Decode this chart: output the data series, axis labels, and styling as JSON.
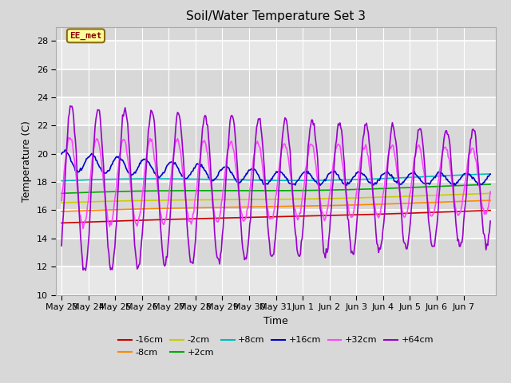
{
  "title": "Soil/Water Temperature Set 3",
  "xlabel": "Time",
  "ylabel": "Temperature (C)",
  "ylim": [
    10,
    29
  ],
  "yticks": [
    10,
    12,
    14,
    16,
    18,
    20,
    22,
    24,
    26,
    28
  ],
  "figsize": [
    6.4,
    4.8
  ],
  "dpi": 100,
  "bg_color": "#d8d8d8",
  "annotation_text": "EE_met",
  "annotation_color": "#8B0000",
  "annotation_bg": "#ffff99",
  "annotation_border": "#8B6914",
  "x_labels": [
    "May 23",
    "May 24",
    "May 25",
    "May 26",
    "May 27",
    "May 28",
    "May 29",
    "May 30",
    "May 31",
    "Jun 1",
    "Jun 2",
    "Jun 3",
    "Jun 4",
    "Jun 5",
    "Jun 6",
    "Jun 7"
  ],
  "colors": {
    "-16cm": "#cc0000",
    "-8cm": "#ff8800",
    "-2cm": "#cccc00",
    "+2cm": "#00aa00",
    "+8cm": "#00bbbb",
    "+16cm": "#0000cc",
    "+32cm": "#ff44ff",
    "+64cm": "#9900cc"
  }
}
